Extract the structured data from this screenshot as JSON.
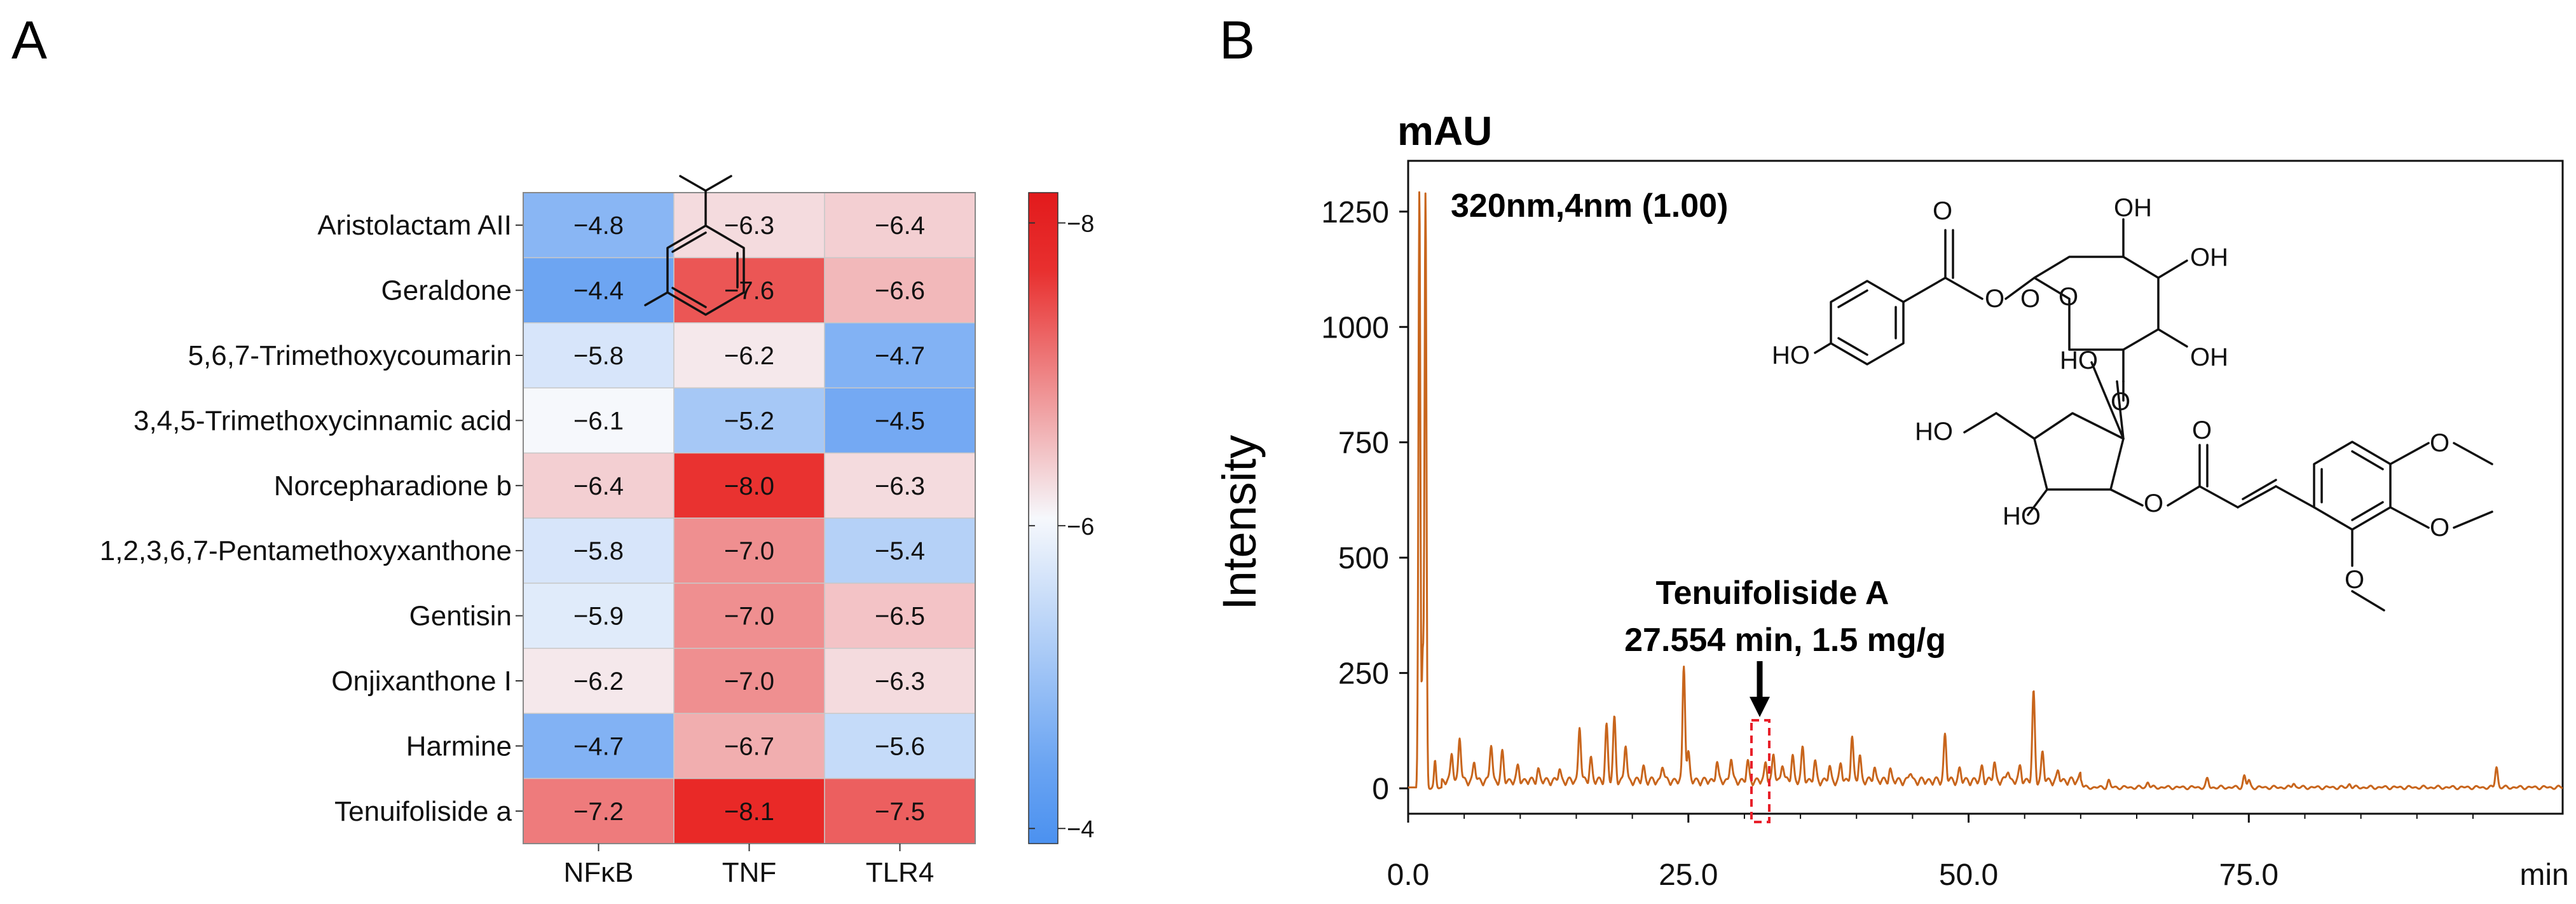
{
  "chart_data": [
    {
      "panel": "A",
      "type": "heatmap",
      "rows": [
        "Aristolactam AII",
        "Geraldone",
        "5,6,7-Trimethoxycoumarin",
        "3,4,5-Trimethoxycinnamic acid",
        "Norcepharadione b",
        "1,2,3,6,7-Pentamethoxyxanthone",
        "Gentisin",
        "Onjixanthone I",
        "Harmine",
        "Tenuifoliside a"
      ],
      "columns": [
        "NFκB",
        "TNF",
        "TLR4"
      ],
      "values": [
        [
          -4.8,
          -6.3,
          -6.4
        ],
        [
          -4.4,
          -7.6,
          -6.6
        ],
        [
          -5.8,
          -6.2,
          -4.7
        ],
        [
          -6.1,
          -5.2,
          -4.5
        ],
        [
          -6.4,
          -8.0,
          -6.3
        ],
        [
          -5.8,
          -7.0,
          -5.4
        ],
        [
          -5.9,
          -7.0,
          -6.5
        ],
        [
          -6.2,
          -7.0,
          -6.3
        ],
        [
          -4.7,
          -6.7,
          -5.6
        ],
        [
          -7.2,
          -8.1,
          -7.5
        ]
      ],
      "labels": [
        [
          "−4.8",
          "−6.3",
          "−6.4"
        ],
        [
          "−4.4",
          "−7.6",
          "−6.6"
        ],
        [
          "−5.8",
          "−6.2",
          "−4.7"
        ],
        [
          "−6.1",
          "−5.2",
          "−4.5"
        ],
        [
          "−6.4",
          "−8.0",
          "−6.3"
        ],
        [
          "−5.8",
          "−7.0",
          "−5.4"
        ],
        [
          "−5.9",
          "−7.0",
          "−6.5"
        ],
        [
          "−6.2",
          "−7.0",
          "−6.3"
        ],
        [
          "−4.7",
          "−6.7",
          "−5.6"
        ],
        [
          "−7.2",
          "−8.1",
          "−7.5"
        ]
      ],
      "colorbar": {
        "min": -8.2,
        "max": -3.9,
        "mid": -6.1,
        "ticks": [
          -8,
          -6,
          -4
        ],
        "tick_labels": [
          "−8",
          "−6",
          "−4"
        ]
      },
      "colors": {
        "low": "#e8201e",
        "mid": "#f6f8fc",
        "high": "#4b91f0"
      }
    },
    {
      "panel": "B",
      "type": "line",
      "title": "320nm,4nm (1.00)",
      "ylabel": "Intensity",
      "yunit": "mAU",
      "xunit": "min",
      "xlim": [
        0,
        103
      ],
      "ylim": [
        -55,
        1360
      ],
      "xticks": [
        "0.0",
        "25.0",
        "50.0",
        "75.0"
      ],
      "xtick_values": [
        0,
        25,
        50,
        75
      ],
      "yticks": [
        "0",
        "250",
        "500",
        "750",
        "1000",
        "1250"
      ],
      "ytick_values": [
        0,
        250,
        500,
        750,
        1000,
        1250
      ],
      "peaks": [
        [
          1.0,
          1295
        ],
        [
          1.55,
          1285
        ],
        [
          1.3,
          280
        ],
        [
          2.4,
          55
        ],
        [
          3.9,
          60
        ],
        [
          4.6,
          95
        ],
        [
          5.9,
          40
        ],
        [
          7.4,
          80
        ],
        [
          8.4,
          60
        ],
        [
          9.8,
          30
        ],
        [
          11.6,
          25
        ],
        [
          13.5,
          25
        ],
        [
          15.3,
          120
        ],
        [
          16.3,
          50
        ],
        [
          17.7,
          120
        ],
        [
          18.4,
          135
        ],
        [
          19.4,
          80
        ],
        [
          21.0,
          30
        ],
        [
          22.7,
          35
        ],
        [
          24.6,
          250
        ],
        [
          25.0,
          60
        ],
        [
          27.55,
          40
        ],
        [
          28.8,
          50
        ],
        [
          30.3,
          40
        ],
        [
          31.9,
          40
        ],
        [
          32.6,
          55
        ],
        [
          33.4,
          40
        ],
        [
          34.3,
          55
        ],
        [
          35.2,
          70
        ],
        [
          36.3,
          40
        ],
        [
          37.6,
          30
        ],
        [
          38.6,
          35
        ],
        [
          39.6,
          95
        ],
        [
          40.3,
          55
        ],
        [
          41.6,
          30
        ],
        [
          43.0,
          25
        ],
        [
          44.8,
          20
        ],
        [
          47.9,
          100
        ],
        [
          49.2,
          25
        ],
        [
          51.2,
          30
        ],
        [
          52.3,
          40
        ],
        [
          53.5,
          25
        ],
        [
          54.6,
          30
        ],
        [
          55.8,
          190
        ],
        [
          56.6,
          60
        ],
        [
          58.0,
          20
        ],
        [
          60.0,
          18
        ],
        [
          62.5,
          15
        ],
        [
          66.0,
          12
        ],
        [
          71.3,
          18
        ],
        [
          74.6,
          25
        ],
        [
          75.0,
          15
        ],
        [
          79.0,
          10
        ],
        [
          84.0,
          8
        ],
        [
          97.1,
          45
        ]
      ],
      "color": "#c8651c",
      "annotation": {
        "compound": "Tenuifoliside A",
        "detail": "27.554 min, 1.5 mg/g",
        "rt": 27.554
      },
      "structure_labels": [
        "O",
        "O",
        "OH",
        "OH",
        "OH",
        "HO",
        "O",
        "HO",
        "O",
        "HO",
        "HO",
        "O",
        "O",
        "O",
        "O",
        "O",
        "O"
      ]
    }
  ]
}
